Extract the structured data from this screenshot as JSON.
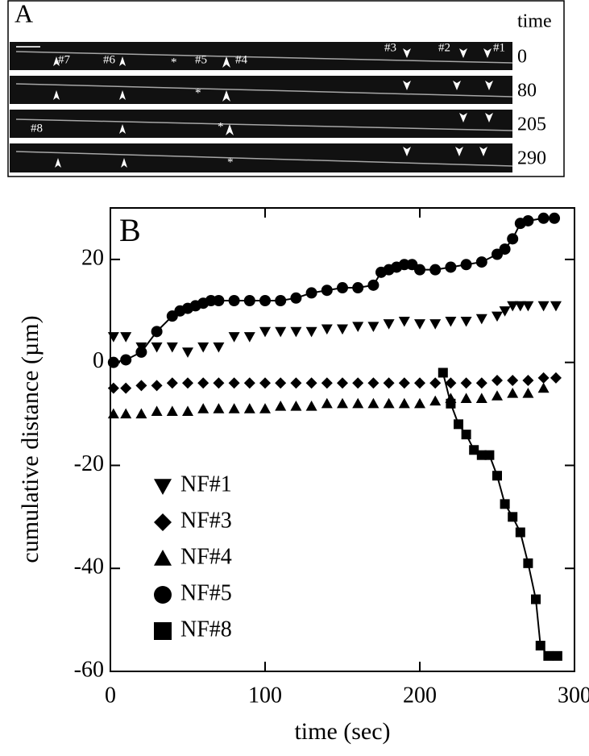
{
  "panel_a": {
    "label": "A",
    "time_header": "time",
    "times": [
      0,
      80,
      205,
      290
    ],
    "filament_labels": [
      "#7",
      "#6",
      "#5",
      "#4",
      "#3",
      "#2",
      "#1",
      "#8"
    ],
    "asterisk": "*"
  },
  "chart_data": {
    "type": "scatter",
    "panel_label": "B",
    "x_label": "time (sec)",
    "y_label": "cumulative distance (µm)",
    "xlim": [
      0,
      300
    ],
    "xticks": [
      0,
      100,
      200,
      300
    ],
    "ylim": [
      -60,
      30
    ],
    "yticks": [
      -60,
      -40,
      -20,
      0,
      20
    ],
    "legend": "lower left",
    "series": [
      {
        "name": "NF#1",
        "marker": "triangle-down",
        "color": "#000000",
        "line": false,
        "x": [
          2,
          10,
          20,
          30,
          40,
          50,
          60,
          70,
          80,
          90,
          100,
          110,
          120,
          130,
          140,
          150,
          160,
          170,
          180,
          190,
          200,
          210,
          220,
          230,
          240,
          250,
          255,
          260,
          265,
          270,
          280,
          288
        ],
        "values": [
          5,
          5,
          3,
          3,
          3,
          2,
          3,
          3,
          5,
          5,
          6,
          6,
          6,
          6,
          6.5,
          6.5,
          7,
          7,
          7.5,
          8,
          7.5,
          7.5,
          8,
          8,
          8.5,
          9,
          10,
          11,
          11,
          11,
          11,
          11
        ]
      },
      {
        "name": "NF#3",
        "marker": "diamond",
        "color": "#000000",
        "line": false,
        "x": [
          2,
          10,
          20,
          30,
          40,
          50,
          60,
          70,
          80,
          90,
          100,
          110,
          120,
          130,
          140,
          150,
          160,
          170,
          180,
          190,
          200,
          210,
          220,
          230,
          240,
          250,
          260,
          270,
          280,
          288
        ],
        "values": [
          -5,
          -5,
          -4.5,
          -4.5,
          -4,
          -4,
          -4,
          -4,
          -4,
          -4,
          -4,
          -4,
          -4,
          -4,
          -4,
          -4,
          -4,
          -4,
          -4,
          -4,
          -4,
          -4,
          -4,
          -4,
          -4,
          -3.5,
          -3.5,
          -3.5,
          -3,
          -3
        ]
      },
      {
        "name": "NF#4",
        "marker": "triangle-up",
        "color": "#000000",
        "line": false,
        "x": [
          2,
          10,
          20,
          30,
          40,
          50,
          60,
          70,
          80,
          90,
          100,
          110,
          120,
          130,
          140,
          150,
          160,
          170,
          180,
          190,
          200,
          210,
          220,
          230,
          240,
          250,
          260,
          270,
          280
        ],
        "values": [
          -10,
          -10,
          -10,
          -9.5,
          -9.5,
          -9.5,
          -9,
          -9,
          -9,
          -9,
          -9,
          -8.5,
          -8.5,
          -8.5,
          -8,
          -8,
          -8,
          -8,
          -8,
          -8,
          -8,
          -7.5,
          -7,
          -7,
          -7,
          -6.5,
          -6,
          -6,
          -5
        ]
      },
      {
        "name": "NF#5",
        "marker": "circle",
        "color": "#000000",
        "line": true,
        "x": [
          2,
          10,
          20,
          30,
          40,
          45,
          50,
          55,
          60,
          65,
          70,
          80,
          90,
          100,
          110,
          120,
          130,
          140,
          150,
          160,
          170,
          175,
          180,
          185,
          190,
          195,
          200,
          210,
          220,
          230,
          240,
          250,
          255,
          260,
          265,
          270,
          280,
          287
        ],
        "values": [
          0,
          0.5,
          2,
          6,
          9,
          10,
          10.5,
          11,
          11.5,
          12,
          12,
          12,
          12,
          12,
          12,
          12.5,
          13.5,
          14,
          14.5,
          14.5,
          15,
          17.5,
          18,
          18.5,
          19,
          19,
          18,
          18,
          18.5,
          19,
          19.5,
          21,
          22,
          24,
          27,
          27.5,
          28,
          28
        ]
      },
      {
        "name": "NF#8",
        "marker": "square",
        "color": "#000000",
        "line": true,
        "x": [
          215,
          220,
          225,
          230,
          235,
          240,
          245,
          250,
          255,
          260,
          265,
          270,
          275,
          278,
          283,
          289
        ],
        "values": [
          -2,
          -8,
          -12,
          -14,
          -17,
          -18,
          -18,
          -22,
          -27.5,
          -30,
          -33,
          -39,
          -46,
          -55,
          -57,
          -57
        ]
      }
    ]
  }
}
